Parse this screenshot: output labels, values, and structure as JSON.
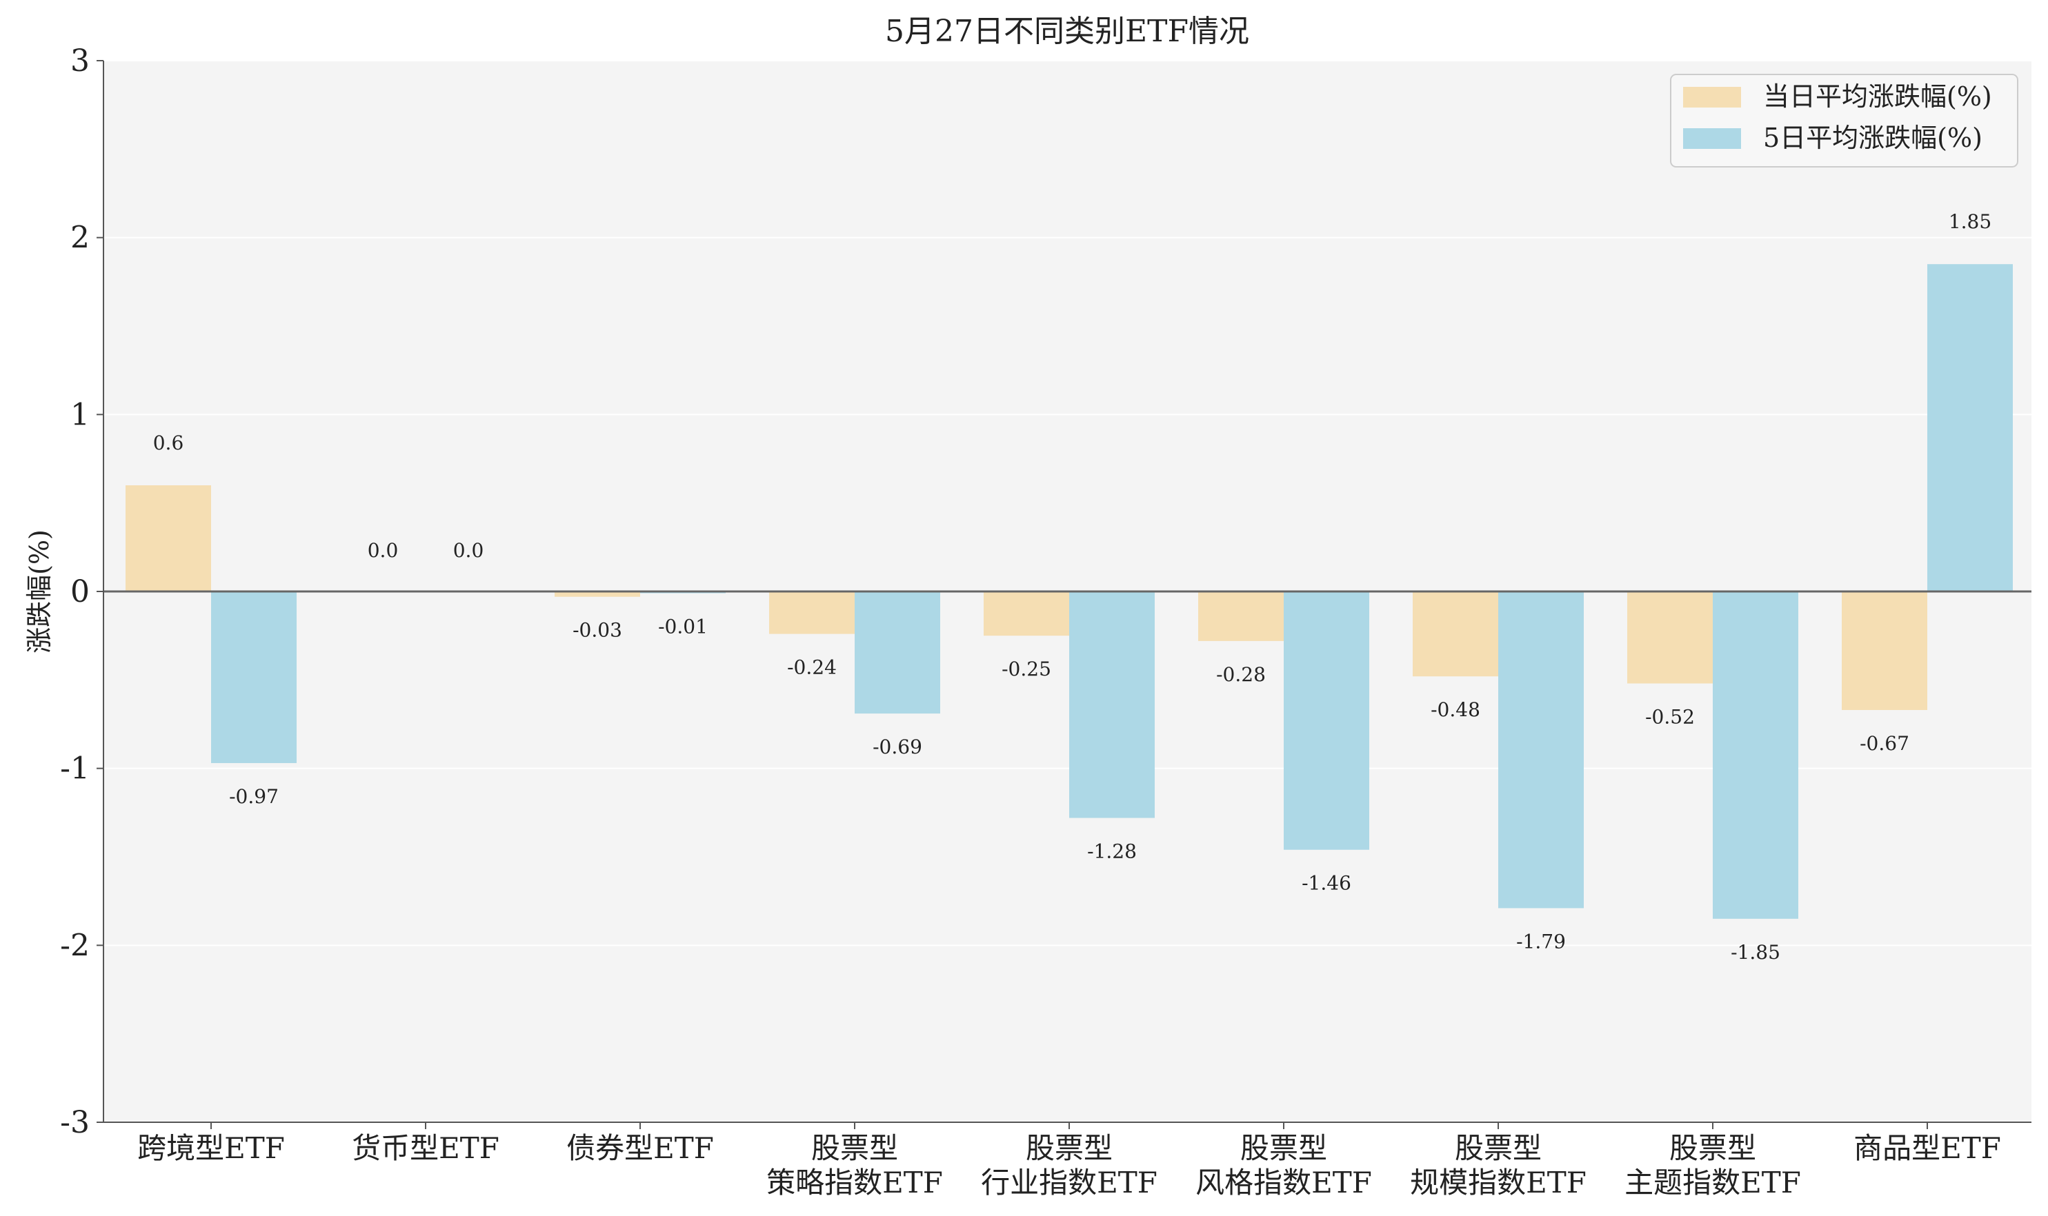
{
  "chart_data": {
    "type": "bar",
    "title": "5月27日不同类别ETF情况",
    "xlabel": "",
    "ylabel": "涨跌幅(%)",
    "ylim": [
      -3,
      3
    ],
    "yticks": [
      "-3",
      "-2",
      "-1",
      "0",
      "1",
      "2",
      "3"
    ],
    "grid": "horizontal",
    "legend_position": "top-right",
    "categories": [
      [
        "跨境型ETF"
      ],
      [
        "货币型ETF"
      ],
      [
        "债券型ETF"
      ],
      [
        "股票型",
        "策略指数ETF"
      ],
      [
        "股票型",
        "行业指数ETF"
      ],
      [
        "股票型",
        "风格指数ETF"
      ],
      [
        "股票型",
        "规模指数ETF"
      ],
      [
        "股票型",
        "主题指数ETF"
      ],
      [
        "商品型ETF"
      ]
    ],
    "series": [
      {
        "name": "当日平均涨跌幅(%)",
        "color": "#F5DEB3",
        "values": [
          0.6,
          0.0,
          -0.03,
          -0.24,
          -0.25,
          -0.28,
          -0.48,
          -0.52,
          -0.67
        ],
        "labels": [
          "0.6",
          "0.0",
          "-0.03",
          "-0.24",
          "-0.25",
          "-0.28",
          "-0.48",
          "-0.52",
          "-0.67"
        ]
      },
      {
        "name": "5日平均涨跌幅(%)",
        "color": "#ADD8E6",
        "values": [
          -0.97,
          0.0,
          -0.01,
          -0.69,
          -1.28,
          -1.46,
          -1.79,
          -1.85,
          1.85
        ],
        "labels": [
          "-0.97",
          "0.0",
          "-0.01",
          "-0.69",
          "-1.28",
          "-1.46",
          "-1.79",
          "-1.85",
          "1.85"
        ]
      }
    ],
    "colors": {
      "plot_background": "#F4F4F4",
      "grid": "#FFFFFF",
      "axis": "#555555",
      "zero_line": "#666666"
    }
  }
}
